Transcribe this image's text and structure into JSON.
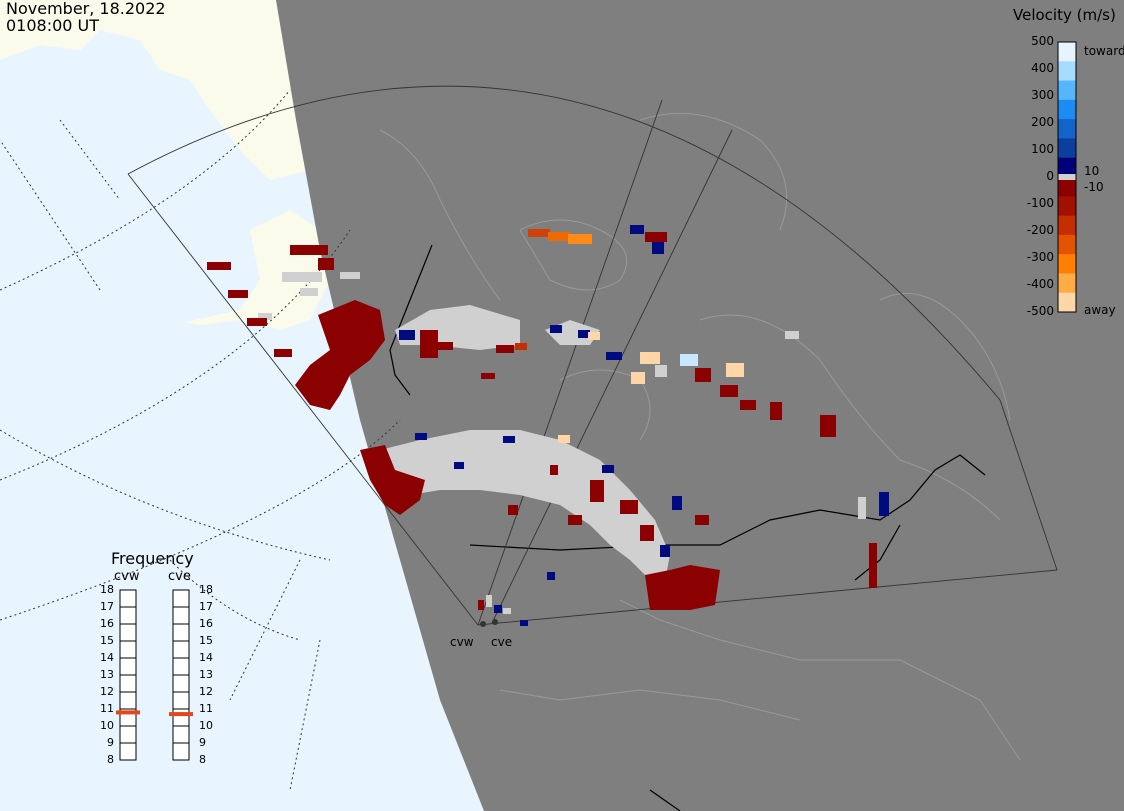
{
  "header": {
    "date": "November, 18.2022",
    "time": "0108:00 UT"
  },
  "velocity_scale": {
    "title": "Velocity (m/s)",
    "ticks": [
      "500",
      "400",
      "300",
      "200",
      "100",
      "0",
      "-100",
      "-200",
      "-300",
      "-400",
      "-500"
    ],
    "inner_ticks": [
      "10",
      "-10"
    ],
    "toward_label": "toward",
    "away_label": "away",
    "colors": [
      "#e6f4ff",
      "#a8dcff",
      "#55b6ff",
      "#1a8cf2",
      "#1363c9",
      "#0a3f9e",
      "#00007a",
      "#8b0000",
      "#a11000",
      "#c42e00",
      "#e35400",
      "#ff7f00",
      "#ffab46",
      "#ffd6a8"
    ]
  },
  "frequency_panel": {
    "title": "Frequency",
    "radars": [
      {
        "name": "cvw",
        "frequency": 10.8
      },
      {
        "name": "cve",
        "frequency": 10.7
      }
    ],
    "ticks": [
      "18",
      "17",
      "16",
      "15",
      "14",
      "13",
      "12",
      "11",
      "10",
      "9",
      "8"
    ],
    "range": [
      8,
      18
    ]
  },
  "sites": {
    "west": "cvw",
    "east": "cve"
  },
  "map_colors": {
    "night": "#7f7f7f",
    "ocean": "#e8f5ff",
    "land_day": "#fbfbeb",
    "ground_scatter": "#d0d0d0"
  }
}
